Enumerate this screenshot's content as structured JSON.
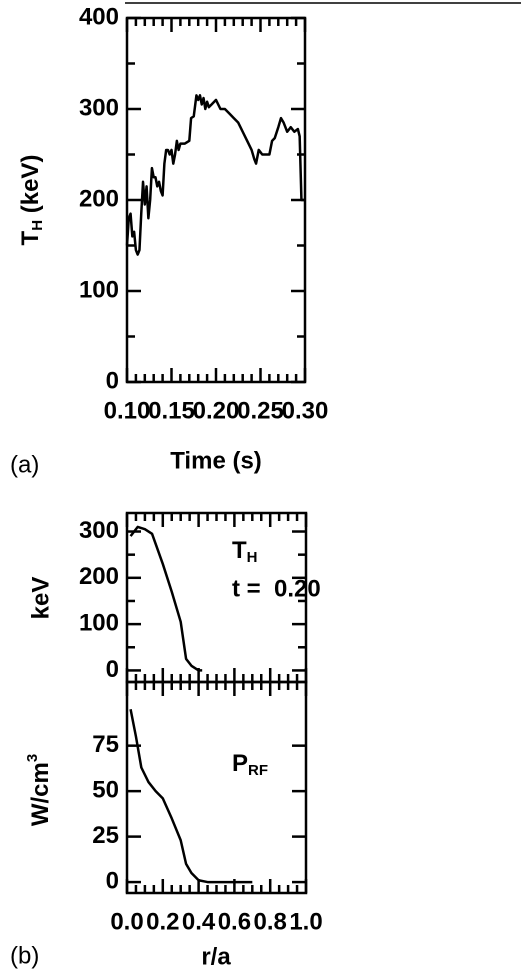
{
  "chart_data": [
    {
      "type": "line",
      "panel_label": "(a)",
      "xlabel": "Time (s)",
      "ylabel": "T",
      "ylabel_sub": "H",
      "ylabel_rest": " (keV)",
      "color": "#000000",
      "xlim": [
        0.1,
        0.3
      ],
      "ylim": [
        0,
        400
      ],
      "xticks": [
        {
          "value": 0.1,
          "label": "0.10"
        },
        {
          "value": 0.15,
          "label": "0.15"
        },
        {
          "value": 0.2,
          "label": "0.20"
        },
        {
          "value": 0.25,
          "label": "0.25"
        },
        {
          "value": 0.3,
          "label": "0.30"
        }
      ],
      "yticks": [
        0,
        100,
        200,
        300,
        400
      ],
      "x": [
        0.1,
        0.102,
        0.104,
        0.106,
        0.108,
        0.11,
        0.112,
        0.114,
        0.116,
        0.118,
        0.12,
        0.122,
        0.124,
        0.126,
        0.128,
        0.13,
        0.132,
        0.134,
        0.136,
        0.138,
        0.14,
        0.142,
        0.144,
        0.146,
        0.148,
        0.15,
        0.152,
        0.154,
        0.156,
        0.158,
        0.16,
        0.165,
        0.17,
        0.172,
        0.175,
        0.178,
        0.18,
        0.182,
        0.184,
        0.186,
        0.188,
        0.19,
        0.192,
        0.195,
        0.2,
        0.205,
        0.21,
        0.215,
        0.22,
        0.225,
        0.23,
        0.235,
        0.24,
        0.243,
        0.245,
        0.248,
        0.252,
        0.256,
        0.26,
        0.263,
        0.266,
        0.27,
        0.273,
        0.276,
        0.28,
        0.284,
        0.288,
        0.292,
        0.294,
        0.296,
        0.3
      ],
      "values": [
        150,
        180,
        185,
        160,
        165,
        145,
        140,
        145,
        185,
        220,
        195,
        215,
        180,
        200,
        235,
        225,
        225,
        215,
        220,
        210,
        205,
        240,
        255,
        255,
        250,
        255,
        240,
        250,
        265,
        255,
        262,
        262,
        265,
        290,
        292,
        315,
        310,
        315,
        305,
        312,
        300,
        308,
        302,
        305,
        310,
        300,
        300,
        295,
        290,
        285,
        275,
        265,
        255,
        245,
        240,
        255,
        250,
        250,
        250,
        265,
        268,
        280,
        290,
        285,
        275,
        280,
        275,
        278,
        270,
        200,
        200
      ]
    },
    {
      "type": "line",
      "panel_label": "(b)",
      "ylabel": "keV",
      "annotation_1": "T",
      "annotation_1_sub": "H",
      "annotation_2": "t =  0.20",
      "color": "#000000",
      "xtick_labels": false,
      "xlim": [
        0,
        1
      ],
      "ylim": [
        -25,
        340
      ],
      "xticks": [
        {
          "value": 0,
          "label": "0.0"
        },
        {
          "value": 0.2,
          "label": "0.2"
        },
        {
          "value": 0.4,
          "label": "0.4"
        },
        {
          "value": 0.6,
          "label": "0.6"
        },
        {
          "value": 0.8,
          "label": "0.8"
        },
        {
          "value": 1,
          "label": "1.0"
        }
      ],
      "yticks": [
        0,
        100,
        200,
        300
      ],
      "x": [
        0.02,
        0.06,
        0.1,
        0.14,
        0.2,
        0.25,
        0.3,
        0.33,
        0.36,
        0.4,
        0.42
      ],
      "values": [
        290,
        310,
        305,
        295,
        230,
        170,
        105,
        25,
        10,
        0,
        0
      ]
    },
    {
      "type": "line",
      "xlabel": "r/a",
      "ylabel": "W/cm",
      "ylabel_sup": "3",
      "annotation_1": "P",
      "annotation_1_sub": "RF",
      "color": "#000000",
      "xtick_labels": true,
      "xlim": [
        0,
        1
      ],
      "ylim": [
        -6,
        110
      ],
      "xticks": [
        {
          "value": 0,
          "label": "0.0"
        },
        {
          "value": 0.2,
          "label": "0.2"
        },
        {
          "value": 0.4,
          "label": "0.4"
        },
        {
          "value": 0.6,
          "label": "0.6"
        },
        {
          "value": 0.8,
          "label": "0.8"
        },
        {
          "value": 1,
          "label": "1.0"
        }
      ],
      "yticks": [
        0,
        25,
        50,
        75
      ],
      "x": [
        0.02,
        0.05,
        0.08,
        0.12,
        0.16,
        0.2,
        0.25,
        0.3,
        0.33,
        0.36,
        0.4,
        0.45,
        0.6,
        0.7
      ],
      "values": [
        95,
        80,
        63,
        55,
        50,
        46,
        35,
        23,
        10,
        5,
        1,
        0,
        0,
        0
      ]
    }
  ]
}
